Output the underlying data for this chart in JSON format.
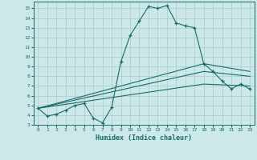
{
  "xlabel": "Humidex (Indice chaleur)",
  "background_color": "#cce8e8",
  "grid_color": "#afd0d0",
  "line_color": "#1a6b6b",
  "xlim": [
    -0.5,
    23.5
  ],
  "ylim": [
    3,
    15.7
  ],
  "xticks": [
    0,
    1,
    2,
    3,
    4,
    5,
    6,
    7,
    8,
    9,
    10,
    11,
    12,
    13,
    14,
    15,
    16,
    17,
    18,
    19,
    20,
    21,
    22,
    23
  ],
  "yticks": [
    3,
    4,
    5,
    6,
    7,
    8,
    9,
    10,
    11,
    12,
    13,
    14,
    15
  ],
  "series1_x": [
    0,
    1,
    2,
    3,
    4,
    5,
    6,
    7,
    8,
    9,
    10,
    11,
    12,
    13,
    14,
    15,
    16,
    17,
    18,
    19,
    20,
    21,
    22,
    23
  ],
  "series1_y": [
    4.7,
    3.9,
    4.1,
    4.5,
    5.0,
    5.2,
    3.7,
    3.2,
    4.8,
    9.5,
    12.2,
    13.7,
    15.2,
    15.0,
    15.3,
    13.5,
    13.2,
    13.0,
    9.3,
    8.5,
    7.5,
    6.7,
    7.2,
    6.7
  ],
  "series2_x": [
    0,
    18,
    23
  ],
  "series2_y": [
    4.7,
    9.3,
    8.5
  ],
  "series3_x": [
    0,
    18,
    23
  ],
  "series3_y": [
    4.7,
    8.5,
    8.0
  ],
  "series4_x": [
    0,
    18,
    23
  ],
  "series4_y": [
    4.7,
    7.2,
    7.0
  ]
}
